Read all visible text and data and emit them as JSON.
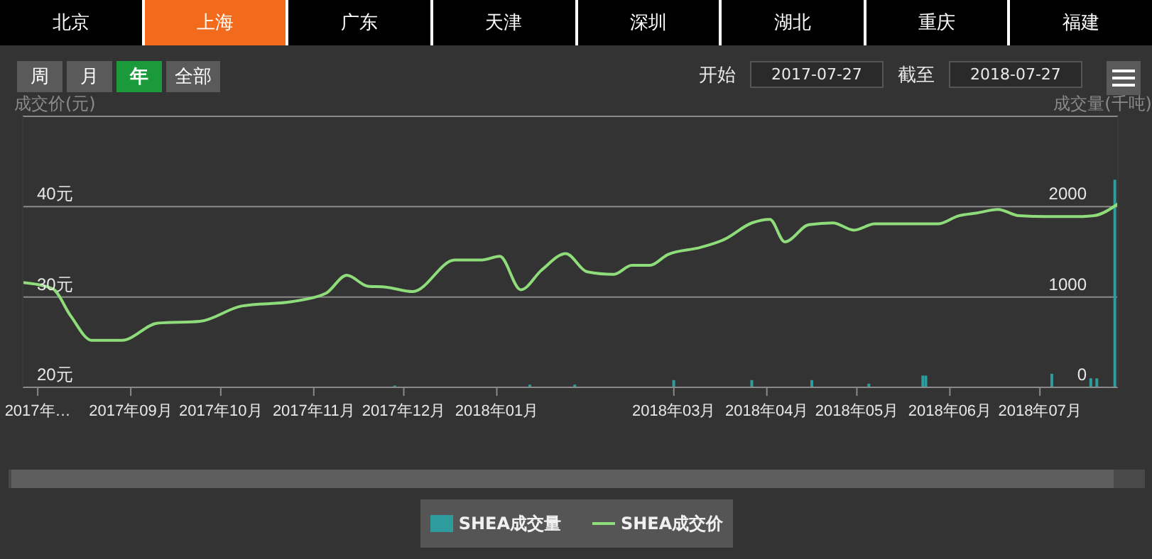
{
  "chart_data": {
    "type": "line",
    "ylabel": "成交价(元)",
    "y2label": "成交量(千吨)",
    "annotations": [
      "北京",
      "上海",
      "广东",
      "天津",
      "深圳",
      "湖北",
      "重庆",
      "福建",
      "周",
      "月",
      "年",
      "全部",
      "开始",
      "2017-07-27",
      "截至",
      "2018-07-27"
    ],
    "xlim": [
      "2017-07-27",
      "2018-07-27"
    ],
    "xticks": [
      {
        "value": "2017-08-01",
        "label": "2017年…"
      },
      {
        "value": "2017-09-01",
        "label": "2017年09月"
      },
      {
        "value": "2017-10-01",
        "label": "2017年10月"
      },
      {
        "value": "2017-11-01",
        "label": "2017年11月"
      },
      {
        "value": "2017-12-01",
        "label": "2017年12月"
      },
      {
        "value": "2018-01-01",
        "label": "2018年01月"
      },
      {
        "value": "2018-03-01",
        "label": "2018年03月"
      },
      {
        "value": "2018-04-01",
        "label": "2018年04月"
      },
      {
        "value": "2018-05-01",
        "label": "2018年05月"
      },
      {
        "value": "2018-06-01",
        "label": "2018年06月"
      },
      {
        "value": "2018-07-01",
        "label": "2018年07月"
      }
    ],
    "ylim": [
      20,
      50
    ],
    "yticks": [
      {
        "value": 20,
        "label": "20元"
      },
      {
        "value": 30,
        "label": "30元"
      },
      {
        "value": 40,
        "label": "40元"
      },
      {
        "value": 50,
        "label": null
      }
    ],
    "y2lim": [
      0,
      3000
    ],
    "y2ticks": [
      0,
      1000,
      2000
    ],
    "grid": "y",
    "legend": "bottom",
    "series": [
      {
        "name": "SHEA成交量",
        "type": "bar",
        "axis": "y2",
        "color": "#2e9c9c",
        "x": [
          "2017-11-28",
          "2018-01-12",
          "2018-01-27",
          "2018-03-01",
          "2018-03-27",
          "2018-04-16",
          "2018-05-05",
          "2018-05-23",
          "2018-05-24",
          "2018-07-05",
          "2018-07-18",
          "2018-07-20",
          "2018-07-26"
        ],
        "values": [
          20,
          30,
          30,
          80,
          80,
          80,
          40,
          130,
          130,
          150,
          100,
          100,
          2300
        ]
      },
      {
        "name": "SHEA成交价",
        "color": "#8fdc7a",
        "x": [
          "2017-07-27",
          "2017-08-06",
          "2017-08-12",
          "2017-08-19",
          "2017-08-29",
          "2017-09-10",
          "2017-09-24",
          "2017-10-08",
          "2017-10-25",
          "2017-11-05",
          "2017-11-12",
          "2017-11-19",
          "2017-11-25",
          "2017-12-04",
          "2017-12-18",
          "2017-12-27",
          "2018-01-02",
          "2018-01-09",
          "2018-01-16",
          "2018-01-24",
          "2018-01-31",
          "2018-02-09",
          "2018-02-15",
          "2018-02-21",
          "2018-02-27",
          "2018-03-10",
          "2018-03-18",
          "2018-03-27",
          "2018-04-02",
          "2018-04-07",
          "2018-04-15",
          "2018-04-23",
          "2018-04-30",
          "2018-05-07",
          "2018-05-18",
          "2018-05-28",
          "2018-06-04",
          "2018-06-10",
          "2018-06-17",
          "2018-06-24",
          "2018-07-03",
          "2018-07-14",
          "2018-07-19",
          "2018-07-27"
        ],
        "values": [
          31.6,
          30.9,
          27.9,
          25.2,
          25.2,
          27.1,
          27.3,
          29,
          29.5,
          30.4,
          32.4,
          31.2,
          31.1,
          30.6,
          34.1,
          34.1,
          34.5,
          30.8,
          33,
          34.8,
          32.8,
          32.5,
          33.5,
          33.5,
          34.7,
          35.5,
          36.4,
          38.2,
          38.6,
          36.1,
          38,
          38.2,
          37.4,
          38.1,
          38.1,
          38.1,
          39,
          39.3,
          39.7,
          39,
          38.9,
          38.9,
          39,
          40.3
        ]
      }
    ]
  }
}
